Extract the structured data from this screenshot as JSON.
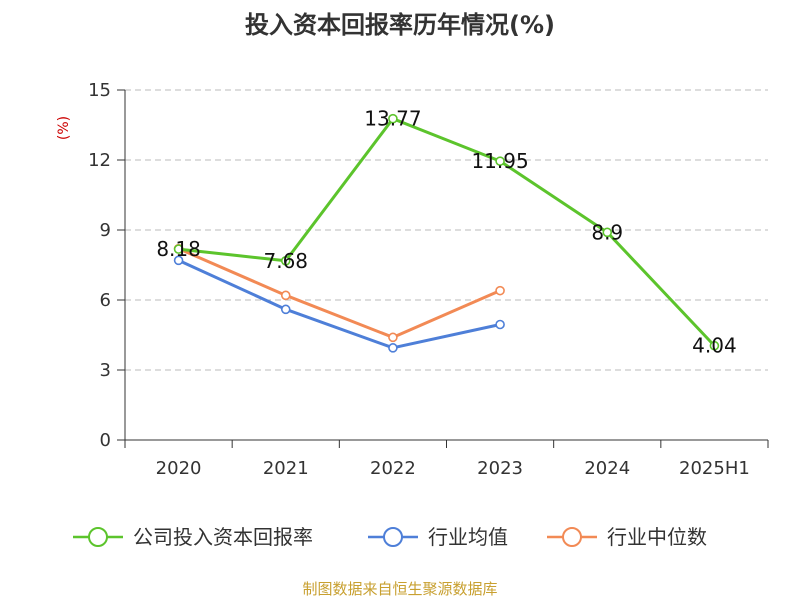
{
  "chart_data": {
    "type": "line",
    "title": "投入资本回报率历年情况(%)",
    "unit_label": "(%)",
    "categories": [
      "2020",
      "2021",
      "2022",
      "2023",
      "2024",
      "2025H1"
    ],
    "ylim": [
      0,
      15
    ],
    "yticks": [
      0,
      3,
      6,
      9,
      12,
      15
    ],
    "grid": true,
    "legend_position": "bottom",
    "series": [
      {
        "name": "公司投入资本回报率",
        "color": "#5cc42c",
        "values": [
          8.18,
          7.68,
          13.77,
          11.95,
          8.9,
          4.04
        ],
        "labels": [
          "8.18",
          "7.68",
          "13.77",
          "11.95",
          "8.9",
          "4.04"
        ]
      },
      {
        "name": "行业均值",
        "color": "#4e7fd8",
        "values": [
          7.7,
          5.6,
          3.95,
          4.95,
          null,
          null
        ]
      },
      {
        "name": "行业中位数",
        "color": "#f28a55",
        "values": [
          8.2,
          6.2,
          4.4,
          6.4,
          null,
          null
        ]
      }
    ],
    "source": "制图数据来自恒生聚源数据库"
  }
}
